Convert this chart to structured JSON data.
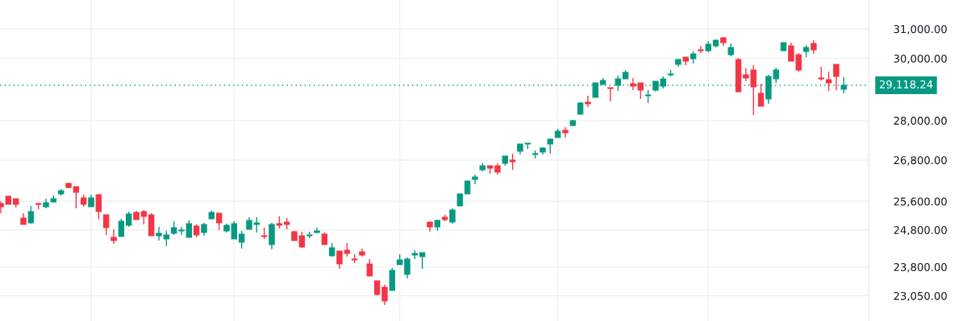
{
  "chart_data": {
    "type": "candlestick",
    "categories": [
      null,
      null,
      null,
      null,
      null,
      null,
      null,
      null,
      null,
      null,
      null,
      null,
      null,
      null,
      null,
      null,
      null,
      null,
      null,
      null,
      null,
      null,
      null,
      null,
      null,
      null,
      null,
      null,
      null,
      null,
      null,
      null,
      null,
      null,
      null,
      null,
      null,
      null,
      null,
      null,
      null,
      null,
      null,
      null,
      null,
      null,
      null,
      null,
      null,
      null,
      null,
      null,
      null,
      null,
      null,
      null,
      null,
      null,
      null,
      null,
      null,
      null,
      null,
      null,
      null,
      null,
      null,
      null,
      null,
      null,
      null,
      null,
      null,
      null,
      null,
      null,
      null,
      null,
      null,
      null,
      null,
      null,
      null,
      null,
      null,
      null,
      null,
      null,
      null,
      null,
      null,
      null,
      null,
      null,
      null,
      null,
      null,
      null,
      null,
      null,
      null,
      null,
      null,
      null,
      null,
      null,
      null,
      null,
      null,
      null,
      null,
      null,
      null
    ],
    "ohlc": [
      [
        25537,
        25605,
        25265,
        25445
      ],
      [
        25743,
        25766,
        25514,
        25514
      ],
      [
        25674,
        25674,
        25423,
        25514
      ],
      [
        25130,
        25265,
        24951,
        24951
      ],
      [
        24996,
        25468,
        24973,
        25310
      ],
      [
        25537,
        25559,
        25377,
        25514
      ],
      [
        25445,
        25674,
        25400,
        25559
      ],
      [
        25582,
        25766,
        25559,
        25674
      ],
      [
        25812,
        25951,
        25766,
        25905
      ],
      [
        26114,
        26137,
        25974,
        25997
      ],
      [
        26021,
        26021,
        25400,
        25858
      ],
      [
        25697,
        25789,
        25445,
        25514
      ],
      [
        25445,
        25789,
        25445,
        25697
      ],
      [
        25789,
        25812,
        25085,
        25310
      ],
      [
        25220,
        25220,
        24662,
        24862
      ],
      [
        24596,
        24817,
        24421,
        24508
      ],
      [
        24618,
        25107,
        24618,
        25040
      ],
      [
        24928,
        25310,
        24884,
        25242
      ],
      [
        25287,
        25332,
        25085,
        25085
      ],
      [
        25310,
        25355,
        24951,
        25175
      ],
      [
        25220,
        25265,
        24640,
        24640
      ],
      [
        24640,
        24884,
        24508,
        24706
      ],
      [
        24552,
        24773,
        24356,
        24662
      ],
      [
        24706,
        25040,
        24662,
        24862
      ],
      [
        24773,
        24884,
        24662,
        24795
      ],
      [
        24596,
        25063,
        24596,
        24973
      ],
      [
        24906,
        24951,
        24596,
        24662
      ],
      [
        24728,
        24996,
        24640,
        24951
      ],
      [
        25107,
        25332,
        25107,
        25287
      ],
      [
        25265,
        25265,
        24795,
        24996
      ],
      [
        24773,
        24973,
        24728,
        24928
      ],
      [
        24552,
        25040,
        24552,
        24973
      ],
      [
        24464,
        24773,
        24291,
        24684
      ],
      [
        24817,
        25152,
        24817,
        25063
      ],
      [
        24951,
        25152,
        24728,
        24996
      ],
      [
        24640,
        24862,
        24552,
        24618
      ],
      [
        24399,
        24996,
        24269,
        24951
      ],
      [
        24973,
        25175,
        24840,
        24928
      ],
      [
        25018,
        25130,
        24817,
        24951
      ],
      [
        24751,
        24773,
        24508,
        24508
      ],
      [
        24640,
        24751,
        24312,
        24334
      ],
      [
        24640,
        24751,
        24574,
        24662
      ],
      [
        24728,
        24862,
        24706,
        24773
      ],
      [
        24684,
        24728,
        24399,
        24399
      ],
      [
        24096,
        24443,
        24075,
        24312
      ],
      [
        24226,
        24226,
        23754,
        23882
      ],
      [
        24247,
        24443,
        24075,
        24161
      ],
      [
        24010,
        24139,
        23903,
        23989
      ],
      [
        24204,
        24291,
        24075,
        24118
      ],
      [
        23882,
        24010,
        23564,
        23564
      ],
      [
        23438,
        23438,
        23064,
        23085
      ],
      [
        23271,
        23334,
        22818,
        22920
      ],
      [
        23188,
        23775,
        23188,
        23712
      ],
      [
        23860,
        24139,
        23860,
        23989
      ],
      [
        23606,
        24053,
        23501,
        24010
      ],
      [
        24118,
        24247,
        24010,
        24161
      ],
      [
        24075,
        24183,
        23754,
        24183
      ],
      [
        25018,
        25018,
        24751,
        24884
      ],
      [
        24884,
        25085,
        24773,
        25063
      ],
      [
        25152,
        25220,
        25040,
        25085
      ],
      [
        25018,
        25400,
        24973,
        25355
      ],
      [
        25468,
        25812,
        25468,
        25812
      ],
      [
        25812,
        26184,
        25812,
        26184
      ],
      [
        26231,
        26372,
        26090,
        26301
      ],
      [
        26513,
        26703,
        26466,
        26632
      ],
      [
        26632,
        26632,
        26396,
        26561
      ],
      [
        26632,
        26703,
        26372,
        26443
      ],
      [
        26703,
        26919,
        26632,
        26919
      ],
      [
        26799,
        26991,
        26513,
        26751
      ],
      [
        27064,
        27282,
        26967,
        27282
      ],
      [
        27282,
        27307,
        27137,
        27307
      ],
      [
        26967,
        27088,
        26847,
        26991
      ],
      [
        27039,
        27185,
        26967,
        27161
      ],
      [
        27282,
        27453,
        26991,
        27429
      ],
      [
        27478,
        27749,
        27478,
        27675
      ],
      [
        27700,
        27799,
        27478,
        27626
      ],
      [
        27849,
        28023,
        27824,
        27998
      ],
      [
        28199,
        28579,
        28199,
        28553
      ],
      [
        28579,
        28784,
        28426,
        28528
      ],
      [
        28732,
        29198,
        28732,
        29198
      ],
      [
        29146,
        29355,
        29146,
        29276
      ],
      [
        29042,
        29042,
        28604,
        29016
      ],
      [
        29120,
        29434,
        28938,
        29329
      ],
      [
        29329,
        29618,
        29329,
        29539
      ],
      [
        29172,
        29355,
        28964,
        29094
      ],
      [
        29198,
        29198,
        28681,
        28964
      ],
      [
        28784,
        28964,
        28553,
        28809
      ],
      [
        28964,
        29250,
        28912,
        29250
      ],
      [
        29094,
        29407,
        29016,
        29329
      ],
      [
        29460,
        29618,
        29407,
        29486
      ],
      [
        29804,
        29991,
        29724,
        29964
      ],
      [
        30045,
        30045,
        29777,
        29911
      ],
      [
        29991,
        30234,
        29831,
        30153
      ],
      [
        30288,
        30423,
        30180,
        30261
      ],
      [
        30261,
        30587,
        30207,
        30478
      ],
      [
        30423,
        30641,
        30369,
        30614
      ],
      [
        30696,
        30724,
        30423,
        30532
      ],
      [
        30126,
        30505,
        30072,
        30369
      ],
      [
        29964,
        30018,
        28887,
        28912
      ],
      [
        29460,
        29671,
        29250,
        29355
      ],
      [
        29618,
        29777,
        28174,
        29068
      ],
      [
        28861,
        29172,
        28452,
        28452
      ],
      [
        28681,
        29460,
        28528,
        29407
      ],
      [
        29329,
        29698,
        29198,
        29618
      ],
      [
        30261,
        30532,
        30261,
        30532
      ],
      [
        30423,
        30532,
        29911,
        29911
      ],
      [
        30126,
        30180,
        29565,
        29618
      ],
      [
        30234,
        30451,
        30045,
        30369
      ],
      [
        30505,
        30614,
        30153,
        30288
      ],
      [
        29355,
        29724,
        29276,
        29329
      ],
      [
        29302,
        29565,
        28938,
        29198
      ],
      [
        29804,
        29804,
        28964,
        29407
      ],
      [
        28990,
        29381,
        28861,
        29118
      ]
    ],
    "colors": [
      "#f23645",
      "#f23645",
      "#f23645",
      "#f23645",
      "#089981",
      "#f23645",
      "#089981",
      "#089981",
      "#089981",
      "#f23645",
      "#f23645",
      "#f23645",
      "#089981",
      "#f23645",
      "#f23645",
      "#f23645",
      "#089981",
      "#089981",
      "#f23645",
      "#f23645",
      "#f23645",
      "#089981",
      "#089981",
      "#089981",
      "#089981",
      "#089981",
      "#f23645",
      "#089981",
      "#089981",
      "#f23645",
      "#089981",
      "#089981",
      "#089981",
      "#089981",
      "#089981",
      "#f23645",
      "#089981",
      "#f23645",
      "#f23645",
      "#f23645",
      "#f23645",
      "#089981",
      "#089981",
      "#f23645",
      "#089981",
      "#f23645",
      "#f23645",
      "#f23645",
      "#f23645",
      "#f23645",
      "#f23645",
      "#f23645",
      "#089981",
      "#089981",
      "#089981",
      "#089981",
      "#089981",
      "#f23645",
      "#089981",
      "#f23645",
      "#089981",
      "#089981",
      "#089981",
      "#089981",
      "#089981",
      "#f23645",
      "#f23645",
      "#089981",
      "#f23645",
      "#089981",
      "#089981",
      "#089981",
      "#089981",
      "#089981",
      "#089981",
      "#f23645",
      "#089981",
      "#089981",
      "#f23645",
      "#089981",
      "#089981",
      "#f23645",
      "#089981",
      "#089981",
      "#f23645",
      "#f23645",
      "#089981",
      "#089981",
      "#089981",
      "#089981",
      "#089981",
      "#f23645",
      "#089981",
      "#f23645",
      "#089981",
      "#089981",
      "#f23645",
      "#089981",
      "#f23645",
      "#f23645",
      "#f23645",
      "#f23645",
      "#089981",
      "#089981",
      "#089981",
      "#f23645",
      "#f23645",
      "#089981",
      "#f23645",
      "#f23645",
      "#f23645",
      "#f23645",
      "#089981"
    ],
    "log": true,
    "ylim": [
      22414,
      32012
    ],
    "yticks": [
      {
        "value": 23050,
        "label": "23,050.00"
      },
      {
        "value": 23800,
        "label": "23,800.00"
      },
      {
        "value": 24800,
        "label": "24,800.00"
      },
      {
        "value": 25600,
        "label": "25,600.00"
      },
      {
        "value": 26800,
        "label": "26,800.00"
      },
      {
        "value": 28000,
        "label": "28,000.00"
      },
      {
        "value": 30000,
        "label": "30,000.00"
      },
      {
        "value": 31000,
        "label": "31,000.00"
      }
    ],
    "ref_lines": [
      {
        "axis": "y",
        "value": 29118.24,
        "label": "29,118.24",
        "color": "#089981",
        "line_style": "dotted"
      }
    ],
    "grid": true,
    "tick_labels": "y"
  }
}
